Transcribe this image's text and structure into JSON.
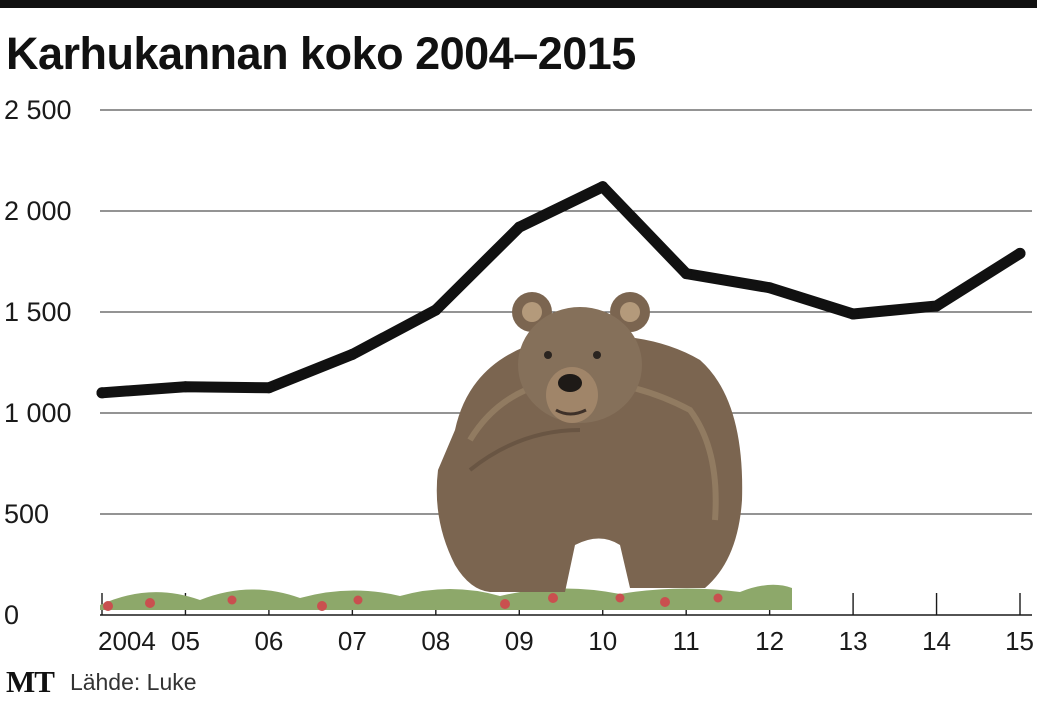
{
  "brand": {
    "logo": "MT",
    "source": "Lähde: Luke"
  },
  "chart_data": {
    "type": "line",
    "title": "Karhukannan koko 2004–2015",
    "xlabel": "",
    "ylabel": "",
    "x": [
      2004,
      2005,
      2006,
      2007,
      2008,
      2009,
      2010,
      2011,
      2012,
      2013,
      2014,
      2015
    ],
    "x_tick_labels": [
      "2004",
      "05",
      "06",
      "07",
      "08",
      "09",
      "10",
      "11",
      "12",
      "13",
      "14",
      "15"
    ],
    "y_tick_values": [
      0,
      500,
      1000,
      1500,
      2000,
      2500
    ],
    "y_tick_labels": [
      "0",
      "500",
      "1 000",
      "1 500",
      "2 000",
      "2 500"
    ],
    "ylim": [
      0,
      2500
    ],
    "grid": "horizontal",
    "series": [
      {
        "name": "",
        "values": [
          1100,
          1130,
          1125,
          1290,
          1510,
          1920,
          2120,
          1690,
          1620,
          1490,
          1530,
          1790
        ]
      }
    ],
    "line_color": "#111111",
    "illustration": "bear-icon"
  }
}
